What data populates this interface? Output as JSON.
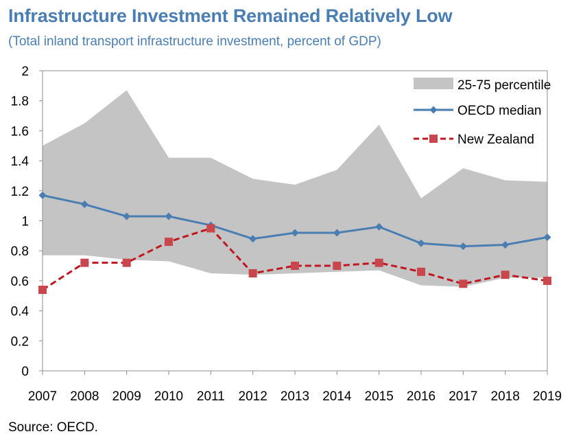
{
  "title": "Infrastructure Investment Remained Relatively Low",
  "subtitle": "(Total inland transport infrastructure investment, percent of GDP)",
  "source": "Source: OECD.",
  "colors": {
    "band": "#c4c4c4",
    "median": "#4a7eb3",
    "nz": "#c0161e",
    "nz_marker": "#c8474c"
  },
  "chart_data": {
    "type": "line",
    "x": [
      "2007",
      "2008",
      "2009",
      "2010",
      "2011",
      "2012",
      "2013",
      "2014",
      "2015",
      "2016",
      "2017",
      "2018",
      "2019"
    ],
    "ylim": [
      0,
      2
    ],
    "yticks": [
      "0",
      "0.2",
      "0.4",
      "0.6",
      "0.8",
      "1",
      "1.2",
      "1.4",
      "1.6",
      "1.8",
      "2"
    ],
    "grid": false,
    "legend_position": "top-right",
    "band": {
      "name": "25-75 percentile",
      "upper": [
        1.5,
        1.65,
        1.87,
        1.42,
        1.42,
        1.28,
        1.24,
        1.34,
        1.64,
        1.15,
        1.35,
        1.27,
        1.26
      ],
      "lower": [
        0.77,
        0.77,
        0.74,
        0.73,
        0.65,
        0.64,
        0.65,
        0.66,
        0.67,
        0.57,
        0.56,
        0.62,
        0.62
      ]
    },
    "series": [
      {
        "name": "OECD median",
        "values": [
          1.17,
          1.11,
          1.03,
          1.03,
          0.97,
          0.88,
          0.92,
          0.92,
          0.96,
          0.85,
          0.83,
          0.84,
          0.89
        ]
      },
      {
        "name": "New Zealand",
        "values": [
          0.54,
          0.72,
          0.72,
          0.86,
          0.95,
          0.65,
          0.7,
          0.7,
          0.72,
          0.66,
          0.58,
          0.64,
          0.6
        ]
      }
    ]
  }
}
